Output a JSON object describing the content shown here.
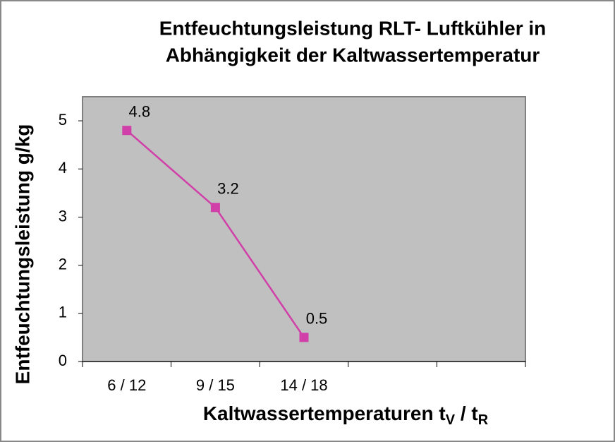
{
  "chart_data": {
    "type": "line",
    "title": [
      "Entfeuchtungsleistung RLT- Luftkühler in",
      "Abhängigkeit der Kaltwassertemperatur"
    ],
    "ylabel": "Entfeuchtungsleistung g/kg",
    "xlabel": [
      "Kaltwassertemperaturen t",
      "V",
      " / t",
      "R"
    ],
    "categories": [
      "6 / 12",
      "9 / 15",
      "14 / 18",
      null,
      null
    ],
    "values": [
      4.8,
      3.2,
      0.5,
      null,
      null
    ],
    "color": "#d040a8",
    "ylim": [
      0,
      5.5
    ],
    "yticks": [
      0,
      1,
      2,
      3,
      4,
      5
    ]
  }
}
